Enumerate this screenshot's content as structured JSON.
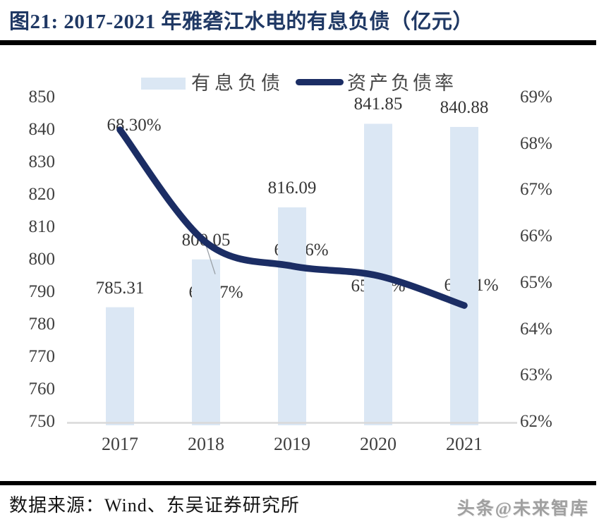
{
  "header": {
    "title": "图21:  2017-2021 年雅砻江水电的有息负债（亿元）"
  },
  "legend": {
    "bar_label": "有息负债",
    "line_label": "资产负债率"
  },
  "chart_data": {
    "type": "bar",
    "subtype": "combo bar+line, dual axis",
    "title": "2017-2021 年雅砻江水电的有息负债（亿元）",
    "categories": [
      "2017",
      "2018",
      "2019",
      "2020",
      "2021"
    ],
    "series": [
      {
        "name": "有息负债",
        "type": "bar",
        "axis": "left",
        "values": [
          785.31,
          800.05,
          816.09,
          841.85,
          840.88
        ],
        "labels": [
          "785.31",
          "800.05",
          "816.09",
          "841.85",
          "840.88"
        ],
        "color": "#dbe7f4"
      },
      {
        "name": "资产负债率",
        "type": "line",
        "axis": "right",
        "values": [
          68.3,
          65.87,
          65.36,
          65.15,
          64.51
        ],
        "labels": [
          "68.30%",
          "65.87%",
          "65.36%",
          "65.15%",
          "64.51%"
        ],
        "color": "#1b2d64"
      }
    ],
    "left_axis": {
      "min": 750,
      "max": 850,
      "step": 10,
      "ticks": [
        "850",
        "840",
        "830",
        "820",
        "810",
        "800",
        "790",
        "780",
        "770",
        "760",
        "750"
      ]
    },
    "right_axis": {
      "min": 62,
      "max": 69,
      "step": 1,
      "ticks": [
        "69%",
        "68%",
        "67%",
        "66%",
        "65%",
        "64%",
        "63%",
        "62%"
      ]
    },
    "legend_position": "top",
    "grid": false
  },
  "footer": {
    "source": "数据来源：Wind、东吴证券研究所",
    "watermark": "头条@未来智库"
  },
  "colors": {
    "title": "#1f3864",
    "bar": "#dbe7f4",
    "line": "#1b2d64",
    "axis_text": "#3f3f3f",
    "data_label_text": "#363636",
    "axis_line": "#d9d9d9",
    "leader_line": "#9aa0a6",
    "rule": "#000000",
    "watermark": "#a0a0a0"
  }
}
